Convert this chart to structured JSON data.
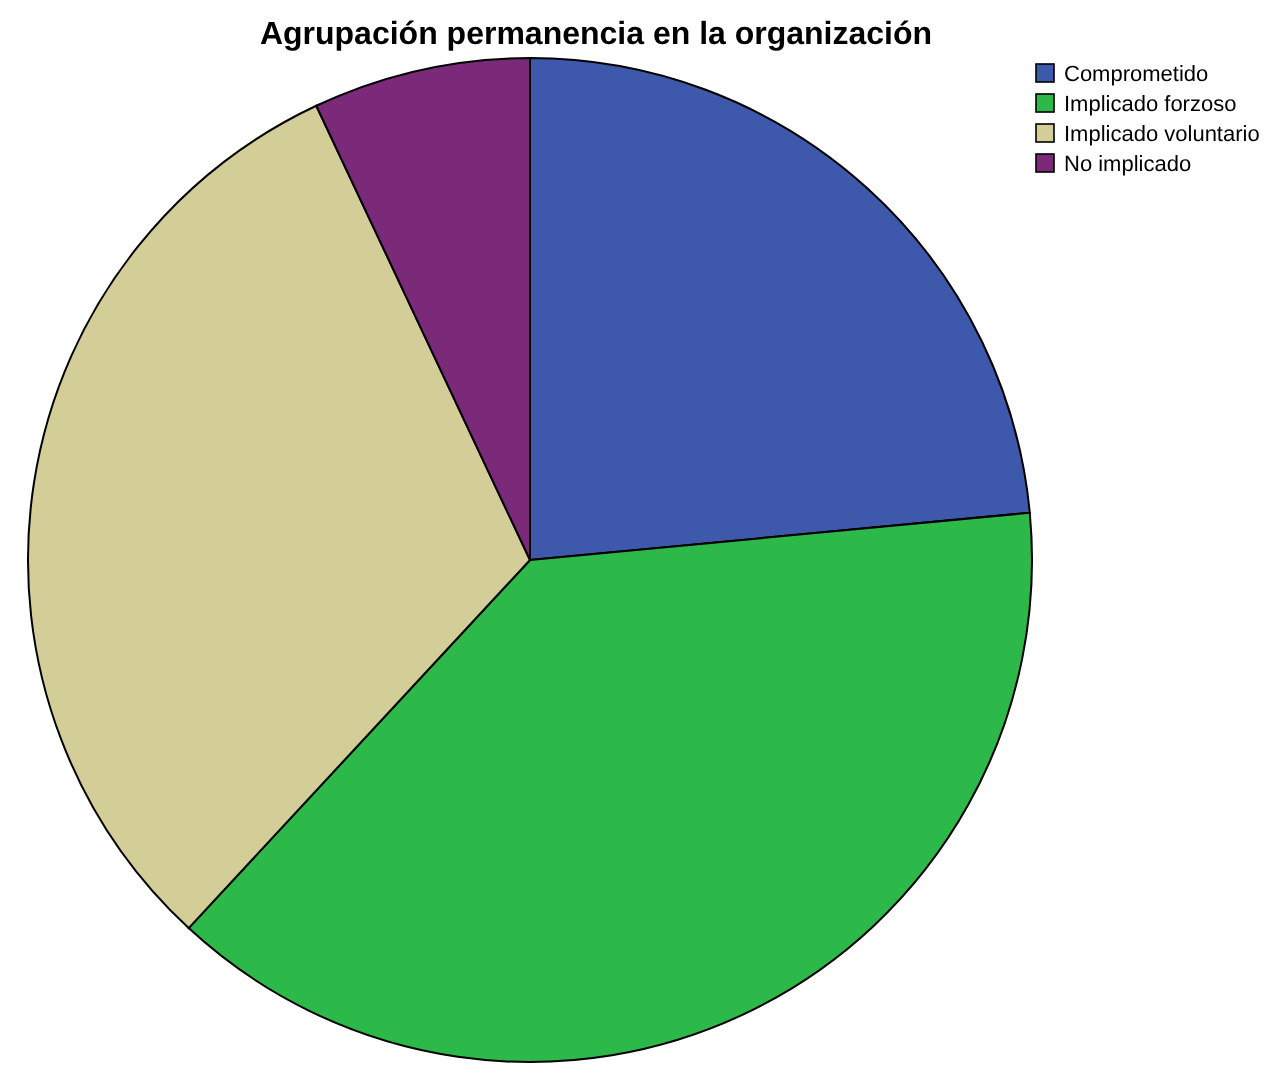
{
  "chart_data": {
    "type": "pie",
    "title": "Agrupación permanencia en la organización",
    "categories": [
      "Comprometido",
      "Implicado forzoso",
      "Implicado voluntario",
      "No implicado"
    ],
    "values": [
      23.5,
      38.4,
      31.1,
      7.0
    ],
    "colors": [
      "#3e58ac",
      "#2db84a",
      "#d3ce97",
      "#7b2a7a"
    ],
    "legend": "top right"
  }
}
